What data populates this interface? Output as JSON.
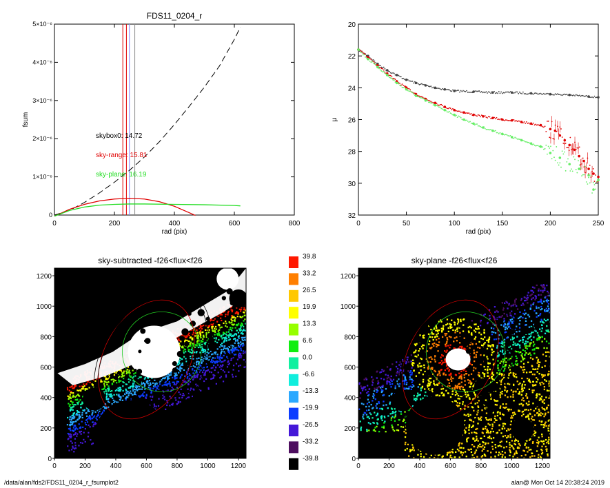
{
  "footer": {
    "path": "/data/alan/fds2/FDS11_0204_r_fsumplot2",
    "user_time": "alan@  Mon Oct 14 20:38:24 2019"
  },
  "chart_data": [
    {
      "panel": "top-left",
      "type": "line",
      "title": "FDS11_0204_r",
      "xlabel": "rad (pix)",
      "ylabel": "fsum",
      "xlim": [
        0,
        800
      ],
      "ylim": [
        0,
        5e-06
      ],
      "xticks": [
        "0",
        "200",
        "400",
        "600",
        "800"
      ],
      "yticks": [
        {
          "value": 0,
          "label": "0"
        },
        {
          "value": 1e-06,
          "label": "1×10⁻⁶"
        },
        {
          "value": 2e-06,
          "label": "2×10⁻⁶"
        },
        {
          "value": 3e-06,
          "label": "3×10⁻⁶"
        },
        {
          "value": 4e-06,
          "label": "4×10⁻⁶"
        },
        {
          "value": 5e-06,
          "label": "5×10⁻⁶"
        }
      ],
      "annotations": [
        {
          "text": "skybox0: 14.72",
          "color": "#000000"
        },
        {
          "text": "sky-range: 15.81",
          "color": "#e00000"
        },
        {
          "text": "sky-plane: 16.19",
          "color": "#22dd22"
        }
      ],
      "vlines": [
        {
          "x": 228,
          "color": "#e00000"
        },
        {
          "x": 240,
          "color": "#e00000"
        },
        {
          "x": 250,
          "color": "#8888ff"
        },
        {
          "x": 268,
          "color": "#888888"
        }
      ],
      "series": [
        {
          "color": "#000000",
          "dash": true,
          "x": [
            0,
            50,
            100,
            150,
            200,
            250,
            300,
            350,
            400,
            450,
            500,
            550,
            600,
            620
          ],
          "y": [
            0,
            1.2e-07,
            3.3e-07,
            5.8e-07,
            8.6e-07,
            1.17e-06,
            1.52e-06,
            1.92e-06,
            2.37e-06,
            2.85e-06,
            3.35e-06,
            3.9e-06,
            4.6e-06,
            4.92e-06
          ]
        },
        {
          "color": "#e00000",
          "dash": false,
          "x": [
            0,
            50,
            100,
            150,
            200,
            250,
            300,
            350,
            400,
            450,
            470
          ],
          "y": [
            -3e-08,
            1.5e-07,
            2.8e-07,
            3.7e-07,
            4.2e-07,
            4.4e-07,
            4.2e-07,
            3.5e-07,
            2.3e-07,
            6e-08,
            -1e-08
          ]
        },
        {
          "color": "#22dd22",
          "dash": false,
          "x": [
            0,
            50,
            100,
            150,
            200,
            250,
            300,
            400,
            500,
            600,
            620
          ],
          "y": [
            -3e-08,
            1.2e-07,
            2.1e-07,
            2.6e-07,
            2.8e-07,
            2.9e-07,
            2.9e-07,
            2.8e-07,
            2.7e-07,
            2.5e-07,
            2.4e-07
          ]
        }
      ]
    },
    {
      "panel": "top-right",
      "type": "scatter",
      "xlabel": "rad (pix)",
      "ylabel": "μ",
      "xlim": [
        0,
        250
      ],
      "ylim": [
        32,
        20
      ],
      "xticks": [
        "0",
        "50",
        "100",
        "150",
        "200",
        "250"
      ],
      "yticks": [
        "20",
        "22",
        "24",
        "26",
        "28",
        "30",
        "32"
      ],
      "series": [
        {
          "color": "#444444",
          "x": [
            0,
            10,
            20,
            30,
            40,
            50,
            60,
            70,
            80,
            90,
            100,
            120,
            140,
            160,
            180,
            200,
            220,
            240,
            250
          ],
          "y": [
            21.6,
            22.0,
            22.5,
            22.9,
            23.2,
            23.5,
            23.7,
            23.85,
            24.0,
            24.1,
            24.2,
            24.25,
            24.3,
            24.3,
            24.35,
            24.4,
            24.45,
            24.55,
            24.6
          ]
        },
        {
          "color": "#e00000",
          "x": [
            0,
            10,
            20,
            30,
            40,
            50,
            60,
            70,
            80,
            90,
            100,
            110,
            120,
            130,
            140,
            150,
            160,
            170,
            180,
            190,
            200,
            205,
            210,
            215,
            220,
            225,
            230,
            235,
            240,
            245,
            250
          ],
          "y": [
            21.6,
            22.1,
            22.6,
            23.1,
            23.6,
            24.0,
            24.4,
            24.7,
            24.95,
            25.2,
            25.4,
            25.55,
            25.7,
            25.8,
            25.9,
            26.0,
            26.05,
            26.15,
            26.25,
            26.35,
            26.6,
            26.7,
            27.0,
            27.3,
            27.6,
            27.9,
            28.3,
            28.6,
            29.1,
            29.4,
            29.6
          ]
        },
        {
          "color": "#66ee66",
          "x": [
            0,
            10,
            20,
            30,
            40,
            50,
            60,
            70,
            80,
            90,
            100,
            110,
            120,
            130,
            140,
            150,
            160,
            170,
            180,
            190,
            200,
            210,
            220,
            230,
            240,
            245,
            250
          ],
          "y": [
            21.6,
            22.2,
            22.7,
            23.2,
            23.7,
            24.1,
            24.5,
            24.8,
            25.1,
            25.4,
            25.7,
            26.0,
            26.25,
            26.5,
            26.7,
            26.9,
            27.1,
            27.3,
            27.5,
            27.7,
            28.1,
            28.4,
            28.8,
            29.1,
            29.5,
            30.4,
            29.8
          ]
        }
      ]
    },
    {
      "panel": "bottom-left",
      "type": "heatmap",
      "title": "sky-subtracted -f26<flux<f26",
      "xlim": [
        0,
        1250
      ],
      "ylim": [
        0,
        1250
      ],
      "xticks": [
        "0",
        "200",
        "400",
        "600",
        "800",
        "1000",
        "1200"
      ],
      "yticks": [
        "0",
        "200",
        "400",
        "600",
        "800",
        "1000",
        "1200"
      ]
    },
    {
      "panel": "bottom-right",
      "type": "heatmap",
      "title": "sky-plane -f26<flux<f26",
      "xlim": [
        0,
        1250
      ],
      "ylim": [
        0,
        1250
      ],
      "xticks": [
        "0",
        "200",
        "400",
        "600",
        "800",
        "1000",
        "1200"
      ],
      "yticks": [
        "0",
        "200",
        "400",
        "600",
        "800",
        "1000",
        "1200"
      ]
    },
    {
      "panel": "colorbar",
      "type": "table",
      "levels": [
        {
          "label": "39.8",
          "color": "#ff1800"
        },
        {
          "label": "33.2",
          "color": "#ff7f00"
        },
        {
          "label": "26.5",
          "color": "#ffc800"
        },
        {
          "label": "19.9",
          "color": "#ffff00"
        },
        {
          "label": "13.3",
          "color": "#96ff00"
        },
        {
          "label": "6.6",
          "color": "#10ee10"
        },
        {
          "label": "0.0",
          "color": "#10f0a0"
        },
        {
          "label": "-6.6",
          "color": "#10eedd"
        },
        {
          "label": "-13.3",
          "color": "#2aa8ff"
        },
        {
          "label": "-19.9",
          "color": "#0c3cff"
        },
        {
          "label": "-26.5",
          "color": "#4418d8"
        },
        {
          "label": "-33.2",
          "color": "#4e0f60"
        },
        {
          "label": "-39.8",
          "color": "#000000"
        }
      ]
    }
  ]
}
